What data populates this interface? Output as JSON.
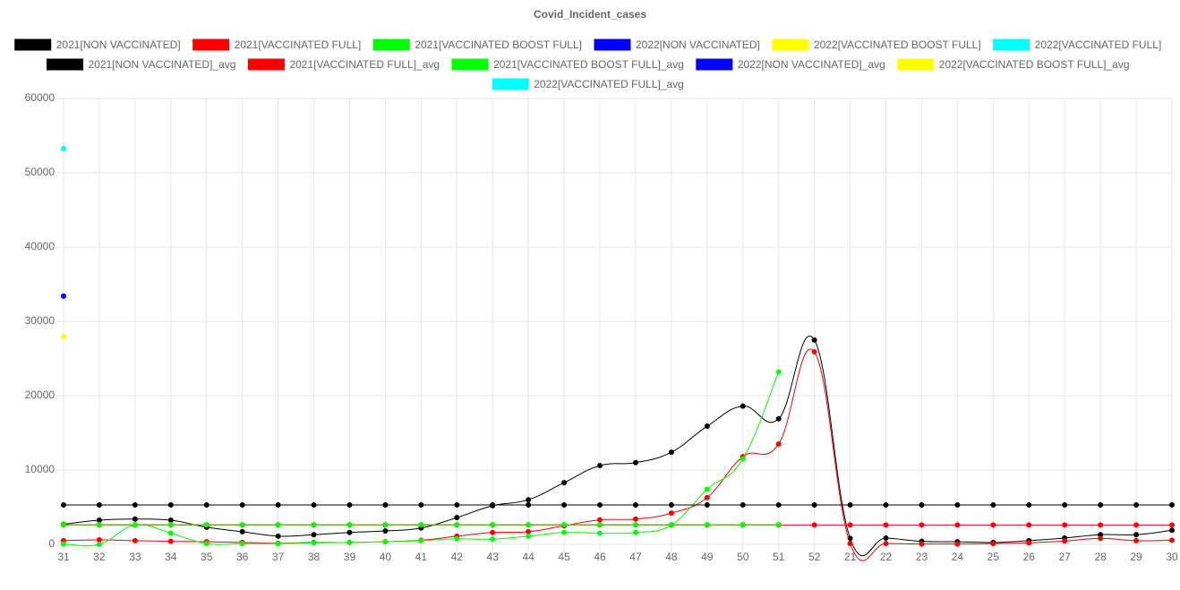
{
  "chart_data": {
    "type": "line",
    "title": "Covid_Incident_cases",
    "categories": [
      "31",
      "32",
      "33",
      "34",
      "35",
      "36",
      "37",
      "38",
      "39",
      "40",
      "41",
      "42",
      "43",
      "44",
      "45",
      "46",
      "47",
      "48",
      "49",
      "50",
      "51",
      "52",
      "21",
      "22",
      "23",
      "24",
      "25",
      "26",
      "27",
      "28",
      "29",
      "30"
    ],
    "ylim": [
      0,
      60000
    ],
    "yticks": [
      0,
      10000,
      20000,
      30000,
      40000,
      50000,
      60000
    ],
    "grid": true,
    "series": [
      {
        "name": "2021[NON VACCINATED]",
        "color": "#000000",
        "values": [
          2700,
          3250,
          3400,
          3250,
          2300,
          1700,
          1100,
          1300,
          1600,
          1800,
          2200,
          3600,
          5200,
          6000,
          8300,
          10600,
          11000,
          12400,
          15900,
          18600,
          16900,
          27500,
          800,
          850,
          400,
          350,
          250,
          500,
          850,
          1300,
          1300,
          1900
        ]
      },
      {
        "name": "2021[VACCINATED FULL]",
        "color": "#ff0000",
        "values": [
          500,
          600,
          500,
          400,
          350,
          250,
          150,
          250,
          250,
          350,
          550,
          1100,
          1600,
          1700,
          2500,
          3300,
          3400,
          4200,
          6300,
          11800,
          13500,
          25900,
          100,
          100,
          50,
          50,
          100,
          200,
          450,
          800,
          500,
          550
        ]
      },
      {
        "name": "2021[VACCINATED BOOST FULL]",
        "color": "#00ff00",
        "values": [
          50,
          0,
          2600,
          1500,
          100,
          100,
          100,
          200,
          250,
          350,
          500,
          750,
          700,
          1100,
          1600,
          1500,
          1600,
          2600,
          7400,
          11500,
          23200,
          null,
          null,
          null,
          null,
          null,
          null,
          null,
          null,
          null,
          null,
          null
        ]
      },
      {
        "name": "2022[NON VACCINATED]",
        "color": "#0000ff",
        "values": [
          33400,
          null,
          null,
          null,
          null,
          null,
          null,
          null,
          null,
          null,
          null,
          null,
          null,
          null,
          null,
          null,
          null,
          null,
          null,
          null,
          null,
          null,
          null,
          null,
          null,
          null,
          null,
          null,
          null,
          null,
          null,
          null
        ]
      },
      {
        "name": "2022[VACCINATED BOOST FULL]",
        "color": "#ffff00",
        "values": [
          27950,
          null,
          null,
          null,
          null,
          null,
          null,
          null,
          null,
          null,
          null,
          null,
          null,
          null,
          null,
          null,
          null,
          null,
          null,
          null,
          null,
          null,
          null,
          null,
          null,
          null,
          null,
          null,
          null,
          null,
          null,
          null
        ]
      },
      {
        "name": "2022[VACCINATED FULL]",
        "color": "#00ffff",
        "values": [
          53250,
          null,
          null,
          null,
          null,
          null,
          null,
          null,
          null,
          null,
          null,
          null,
          null,
          null,
          null,
          null,
          null,
          null,
          null,
          null,
          null,
          null,
          null,
          null,
          null,
          null,
          null,
          null,
          null,
          null,
          null,
          null
        ]
      },
      {
        "name": "2021[NON VACCINATED]_avg",
        "color": "#000000",
        "values": [
          5300,
          5300,
          5300,
          5300,
          5300,
          5300,
          5300,
          5300,
          5300,
          5300,
          5300,
          5300,
          5300,
          5300,
          5300,
          5300,
          5300,
          5300,
          5300,
          5300,
          5300,
          5300,
          5300,
          5300,
          5300,
          5300,
          5300,
          5300,
          5300,
          5300,
          5300,
          5300
        ]
      },
      {
        "name": "2021[VACCINATED FULL]_avg",
        "color": "#ff0000",
        "values": [
          2600,
          2600,
          2600,
          2600,
          2600,
          2600,
          2600,
          2600,
          2600,
          2600,
          2600,
          2600,
          2600,
          2600,
          2600,
          2600,
          2600,
          2600,
          2600,
          2600,
          2600,
          2600,
          2600,
          2600,
          2600,
          2600,
          2600,
          2600,
          2600,
          2600,
          2600,
          2600
        ]
      },
      {
        "name": "2021[VACCINATED BOOST FULL]_avg",
        "color": "#00ff00",
        "values": [
          2650,
          2650,
          2650,
          2650,
          2650,
          2650,
          2650,
          2650,
          2650,
          2650,
          2650,
          2650,
          2650,
          2650,
          2650,
          2650,
          2650,
          2650,
          2650,
          2650,
          2650,
          null,
          null,
          null,
          null,
          null,
          null,
          null,
          null,
          null,
          null,
          null
        ]
      },
      {
        "name": "2022[NON VACCINATED]_avg",
        "color": "#0000ff",
        "values": [
          33400,
          null,
          null,
          null,
          null,
          null,
          null,
          null,
          null,
          null,
          null,
          null,
          null,
          null,
          null,
          null,
          null,
          null,
          null,
          null,
          null,
          null,
          null,
          null,
          null,
          null,
          null,
          null,
          null,
          null,
          null,
          null
        ]
      },
      {
        "name": "2022[VACCINATED BOOST FULL]_avg",
        "color": "#ffff00",
        "values": [
          27950,
          null,
          null,
          null,
          null,
          null,
          null,
          null,
          null,
          null,
          null,
          null,
          null,
          null,
          null,
          null,
          null,
          null,
          null,
          null,
          null,
          null,
          null,
          null,
          null,
          null,
          null,
          null,
          null,
          null,
          null,
          null
        ]
      },
      {
        "name": "2022[VACCINATED FULL]_avg",
        "color": "#00ffff",
        "values": [
          53250,
          null,
          null,
          null,
          null,
          null,
          null,
          null,
          null,
          null,
          null,
          null,
          null,
          null,
          null,
          null,
          null,
          null,
          null,
          null,
          null,
          null,
          null,
          null,
          null,
          null,
          null,
          null,
          null,
          null,
          null,
          null
        ]
      }
    ]
  }
}
